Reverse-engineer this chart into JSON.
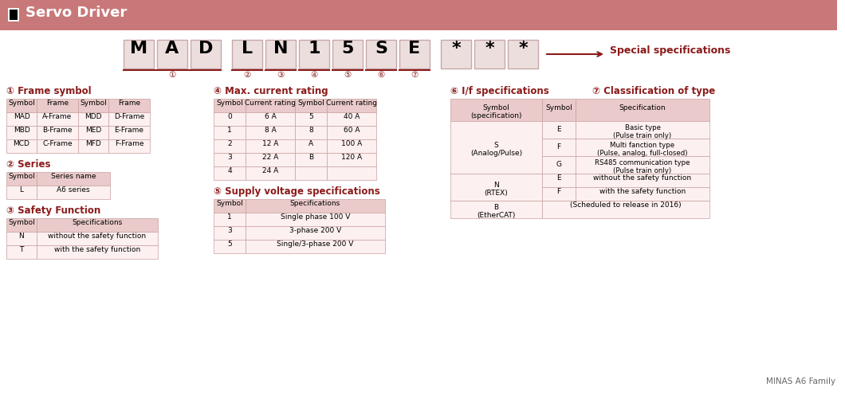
{
  "title": "Servo Driver",
  "header_bg": "#c87878",
  "bg_color": "#ffffff",
  "accent_color": "#8b1a1a",
  "table_header_bg": "#eacaca",
  "table_row_bg": "#fdf0f0",
  "table_border": "#c8a0a0",
  "footer": "MINAS A6 Family",
  "special_spec_text": "Special specifications",
  "model_letters": [
    "M",
    "A",
    "D",
    "L",
    "N",
    "1",
    "5",
    "S",
    "E",
    "*",
    "*",
    "*"
  ],
  "frame_symbol_title": "① Frame symbol",
  "frame_symbol_headers": [
    "Symbol",
    "Frame",
    "Symbol",
    "Frame"
  ],
  "frame_symbol_rows": [
    [
      "MAD",
      "A-Frame",
      "MDD",
      "D-Frame"
    ],
    [
      "MBD",
      "B-Frame",
      "MED",
      "E-Frame"
    ],
    [
      "MCD",
      "C-Frame",
      "MFD",
      "F-Frame"
    ]
  ],
  "series_title": "② Series",
  "series_headers": [
    "Symbol",
    "Series name"
  ],
  "series_rows": [
    [
      "L",
      "A6 series"
    ]
  ],
  "safety_title": "③ Safety Function",
  "safety_headers": [
    "Symbol",
    "Specifications"
  ],
  "safety_rows": [
    [
      "N",
      "without the safety function"
    ],
    [
      "T",
      "with the safety function"
    ]
  ],
  "current_title": "④ Max. current rating",
  "current_headers": [
    "Symbol",
    "Current rating",
    "Symbol",
    "Current rating"
  ],
  "current_rows": [
    [
      "0",
      "6 A",
      "5",
      "40 A"
    ],
    [
      "1",
      "8 A",
      "8",
      "60 A"
    ],
    [
      "2",
      "12 A",
      "A",
      "100 A"
    ],
    [
      "3",
      "22 A",
      "B",
      "120 A"
    ],
    [
      "4",
      "24 A",
      "",
      ""
    ]
  ],
  "voltage_title": "⑤ Supply voltage specifications",
  "voltage_headers": [
    "Symbol",
    "Specifications"
  ],
  "voltage_rows": [
    [
      "1",
      "Single phase 100 V"
    ],
    [
      "3",
      "3-phase 200 V"
    ],
    [
      "5",
      "Single/3-phase 200 V"
    ]
  ],
  "if_title": "⑥ I/f specifications",
  "class_title": "⑦ Classification of type",
  "if_table_headers": [
    "Symbol\n(specification)",
    "Symbol",
    "Specification"
  ],
  "if_s_rows": [
    [
      "E",
      "Basic type\n(Pulse train only)"
    ],
    [
      "F",
      "Multi fanction type\n(Pulse, analog, full-closed)"
    ],
    [
      "G",
      "RS485 communication type\n(Pulse train only)"
    ]
  ],
  "if_n_rows": [
    [
      "E",
      "without the safety function"
    ],
    [
      "F",
      "with the safety function"
    ]
  ],
  "if_b_text": "(Scheduled to release in 2016)"
}
